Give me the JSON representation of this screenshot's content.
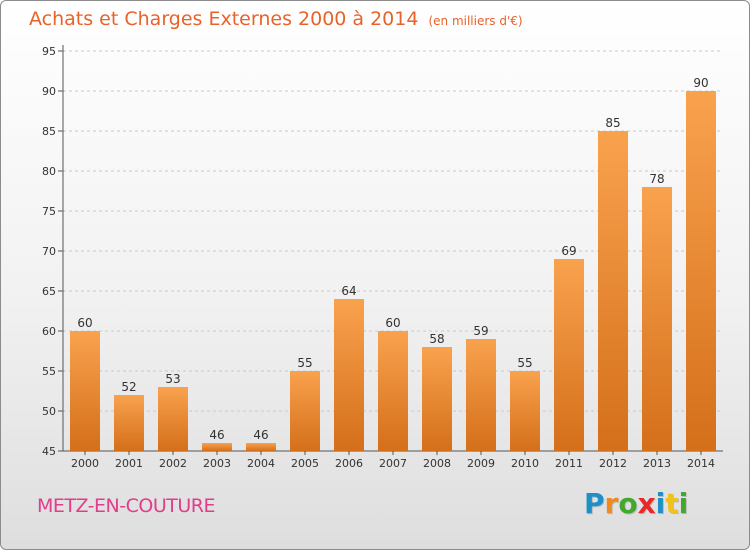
{
  "title": "Achats et Charges Externes 2000 à 2014",
  "unit": "(en milliers d'€)",
  "commune": "METZ-EN-COUTURE",
  "logo": {
    "letters": [
      "P",
      "r",
      "o",
      "x",
      "i",
      "t",
      "i"
    ],
    "colors": [
      "#1e90c8",
      "#f08a1c",
      "#43a82e",
      "#e8282a",
      "#1e90c8",
      "#f0c21c",
      "#43a82e"
    ]
  },
  "colors": {
    "title": "#e8632a",
    "commune": "#e03d8c",
    "bar_top": "#f9a24e",
    "bar_bottom": "#d46f1a",
    "grid": "#c9c9c9"
  },
  "chart_data": {
    "type": "bar",
    "title": "Achats et Charges Externes 2000 à 2014",
    "subtitle": "(en milliers d'€)",
    "xlabel": "",
    "ylabel": "",
    "categories": [
      "2000",
      "2001",
      "2002",
      "2003",
      "2004",
      "2005",
      "2006",
      "2007",
      "2008",
      "2009",
      "2010",
      "2011",
      "2012",
      "2013",
      "2014"
    ],
    "values": [
      60,
      52,
      53,
      46,
      46,
      55,
      64,
      60,
      58,
      59,
      55,
      69,
      85,
      78,
      90
    ],
    "ylim": [
      45,
      95
    ],
    "yticks": [
      45,
      50,
      55,
      60,
      65,
      70,
      75,
      80,
      85,
      90,
      95
    ],
    "grid": true,
    "legend": "none"
  }
}
